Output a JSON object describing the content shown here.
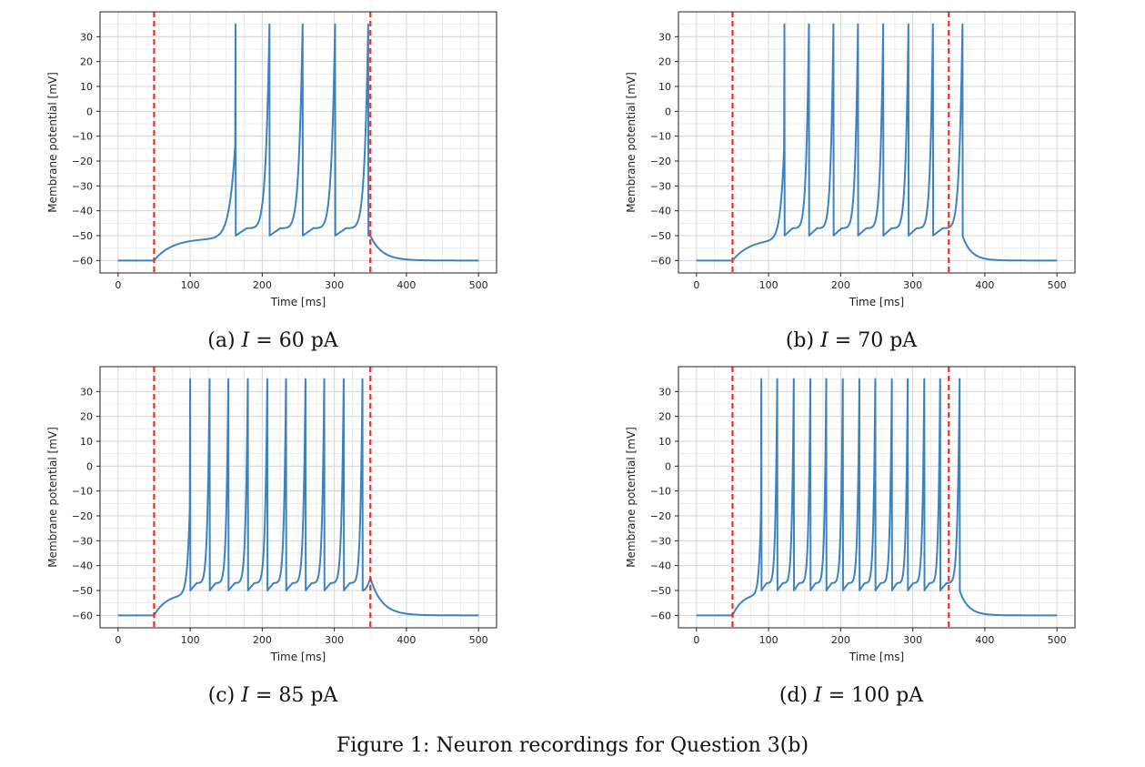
{
  "figure_caption": "Figure 1: Neuron recordings for Question 3(b)",
  "colors": {
    "trace": "#3d82c0",
    "stimulus_marker": "#e8302a",
    "grid": "#d6d6d6"
  },
  "chart_data": [
    {
      "type": "line",
      "caption_prefix": "(a)",
      "caption_variable": "I",
      "caption_rest": " = 60 pA",
      "xlabel": "Time [ms]",
      "ylabel": "Membrane potential [mV]",
      "xlim": [
        -25,
        525
      ],
      "ylim": [
        -65,
        40
      ],
      "xticks": [
        0,
        100,
        200,
        300,
        400,
        500
      ],
      "yticks": [
        30,
        20,
        10,
        0,
        -10,
        -20,
        -30,
        -40,
        -50,
        -60
      ],
      "grid": true,
      "stimulus_lines_x": [
        50,
        350
      ],
      "rest_potential": -60,
      "reset_potential": -50,
      "spike_peak": 35,
      "spike_times": [
        163,
        210,
        256,
        301,
        347
      ],
      "post_pulse_peak": -50,
      "series": [
        {
          "values": []
        }
      ]
    },
    {
      "type": "line",
      "caption_prefix": "(b)",
      "caption_variable": "I",
      "caption_rest": " = 70 pA",
      "xlabel": "Time [ms]",
      "ylabel": "Membrane potential [mV]",
      "xlim": [
        -25,
        525
      ],
      "ylim": [
        -65,
        40
      ],
      "xticks": [
        0,
        100,
        200,
        300,
        400,
        500
      ],
      "yticks": [
        30,
        20,
        10,
        0,
        -10,
        -20,
        -30,
        -40,
        -50,
        -60
      ],
      "grid": true,
      "stimulus_lines_x": [
        50,
        350
      ],
      "rest_potential": -60,
      "reset_potential": -50,
      "spike_peak": 35,
      "spike_times": [
        122,
        156,
        190,
        224,
        259,
        294,
        328,
        369
      ],
      "post_pulse_peak": -50,
      "series": [
        {
          "values": []
        }
      ]
    },
    {
      "type": "line",
      "caption_prefix": "(c)",
      "caption_variable": "I",
      "caption_rest": " = 85 pA",
      "xlabel": "Time [ms]",
      "ylabel": "Membrane potential [mV]",
      "xlim": [
        -25,
        525
      ],
      "ylim": [
        -65,
        40
      ],
      "xticks": [
        0,
        100,
        200,
        300,
        400,
        500
      ],
      "yticks": [
        30,
        20,
        10,
        0,
        -10,
        -20,
        -30,
        -40,
        -50,
        -60
      ],
      "grid": true,
      "stimulus_lines_x": [
        50,
        350
      ],
      "rest_potential": -60,
      "reset_potential": -50,
      "spike_peak": 35,
      "spike_times": [
        100,
        127,
        153,
        180,
        207,
        233,
        260,
        286,
        313,
        339
      ],
      "post_pulse_peak": -45,
      "series": [
        {
          "values": []
        }
      ]
    },
    {
      "type": "line",
      "caption_prefix": "(d)",
      "caption_variable": "I",
      "caption_rest": " = 100 pA",
      "xlabel": "Time [ms]",
      "ylabel": "Membrane potential [mV]",
      "xlim": [
        -25,
        525
      ],
      "ylim": [
        -65,
        40
      ],
      "xticks": [
        0,
        100,
        200,
        300,
        400,
        500
      ],
      "yticks": [
        30,
        20,
        10,
        0,
        -10,
        -20,
        -30,
        -40,
        -50,
        -60
      ],
      "grid": true,
      "stimulus_lines_x": [
        50,
        350
      ],
      "rest_potential": -60,
      "reset_potential": -50,
      "spike_peak": 35,
      "spike_times": [
        90,
        112,
        135,
        158,
        180,
        203,
        226,
        248,
        271,
        293,
        316,
        338,
        365
      ],
      "post_pulse_peak": -50,
      "series": [
        {
          "values": []
        }
      ]
    }
  ]
}
